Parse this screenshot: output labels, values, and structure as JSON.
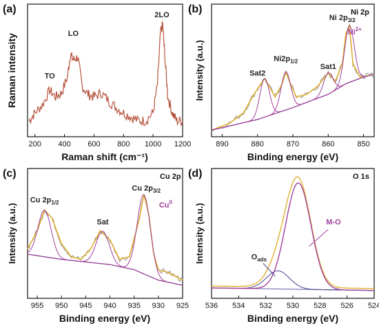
{
  "colors": {
    "raman": "#b5533c",
    "raw": "#9a9a9a",
    "fit": "#e0b030",
    "component_purple": "#a0409a",
    "component_blue": "#3f3f8f",
    "background": "#5a5aa0"
  },
  "chart_data": [
    {
      "panel": "(a)",
      "type": "line",
      "xlabel": "Raman shift (cm⁻¹)",
      "ylabel": "Raman intensity",
      "xlim": [
        150,
        1200
      ],
      "ylim": [
        0,
        1
      ],
      "xticks": [
        "200",
        "400",
        "600",
        "800",
        "1000",
        "1200"
      ],
      "yticks_shown": false,
      "annotations": [
        {
          "text": "TO",
          "x": 300,
          "y": 0.44
        },
        {
          "text": "LO",
          "x": 460,
          "y": 0.76
        },
        {
          "text": "2LO",
          "x": 1060,
          "y": 0.9
        }
      ],
      "series": [
        {
          "x": [
            160,
            200,
            250,
            300,
            340,
            380,
            420,
            440,
            460,
            490,
            520,
            560,
            600,
            650,
            700,
            750,
            800,
            850,
            900,
            950,
            1000,
            1030,
            1050,
            1065,
            1080,
            1100,
            1130,
            1160,
            1200
          ],
          "y": [
            0.12,
            0.18,
            0.24,
            0.35,
            0.3,
            0.33,
            0.45,
            0.62,
            0.58,
            0.6,
            0.38,
            0.32,
            0.3,
            0.33,
            0.27,
            0.22,
            0.18,
            0.15,
            0.12,
            0.12,
            0.18,
            0.4,
            0.78,
            0.85,
            0.6,
            0.3,
            0.18,
            0.12,
            0.12
          ]
        }
      ]
    },
    {
      "panel": "(b)",
      "type": "line",
      "tag": "Ni 2p",
      "xlabel": "Binding energy (eV)",
      "ylabel": "Intensity (a.u.)",
      "xlim": [
        893,
        847
      ],
      "ylim": [
        0,
        1
      ],
      "xticks": [
        "890",
        "880",
        "870",
        "860",
        "850"
      ],
      "yticks_shown": false,
      "annotations": [
        {
          "text": "Sat2",
          "x": 880,
          "y": 0.46,
          "style": "dark"
        },
        {
          "text": "Ni2p",
          "sub": "1/2",
          "x": 872,
          "y": 0.57,
          "style": "dark"
        },
        {
          "text": "Sat1",
          "x": 860,
          "y": 0.51,
          "style": "dark"
        },
        {
          "text": "Ni 2p",
          "sub": "3/2",
          "x": 856,
          "y": 0.88,
          "style": "dark"
        },
        {
          "text": "Ni",
          "sup": "2+",
          "x": 852.5,
          "y": 0.77,
          "style": "purple"
        }
      ],
      "series": [
        {
          "name": "raw",
          "x": [
            893,
            888,
            884,
            881,
            878,
            875,
            873,
            872,
            871,
            869,
            866,
            863,
            860,
            858,
            856,
            855,
            854,
            853,
            851,
            849,
            847
          ],
          "y": [
            0.05,
            0.1,
            0.18,
            0.32,
            0.44,
            0.3,
            0.4,
            0.49,
            0.42,
            0.3,
            0.32,
            0.38,
            0.48,
            0.42,
            0.55,
            0.78,
            0.84,
            0.55,
            0.45,
            0.46,
            0.47
          ]
        },
        {
          "name": "background",
          "x": [
            893,
            880,
            870,
            860,
            855,
            850,
            847
          ],
          "y": [
            0.05,
            0.13,
            0.22,
            0.32,
            0.4,
            0.45,
            0.47
          ]
        }
      ]
    },
    {
      "panel": "(c)",
      "type": "line",
      "tag": "Cu 2p",
      "xlabel": "Binding energy (eV)",
      "ylabel": "Intensity (a.u.)",
      "xlim": [
        957,
        925
      ],
      "ylim": [
        0,
        1
      ],
      "xticks": [
        "955",
        "950",
        "945",
        "940",
        "935",
        "930",
        "925"
      ],
      "yticks_shown": false,
      "annotations": [
        {
          "text": "Cu 2p",
          "sub": "1/2",
          "x": 953.5,
          "y": 0.74,
          "style": "dark"
        },
        {
          "text": "Sat",
          "x": 941.5,
          "y": 0.57,
          "style": "dark"
        },
        {
          "text": "Cu 2p",
          "sub": "3/2",
          "x": 932.5,
          "y": 0.83,
          "style": "dark"
        },
        {
          "text": "Cu",
          "sup": "0",
          "x": 928.5,
          "y": 0.7,
          "style": "purple"
        }
      ],
      "series": [
        {
          "name": "raw",
          "x": [
            957,
            955,
            953.5,
            952,
            950,
            948,
            946,
            944,
            942,
            940,
            938,
            936,
            934,
            933,
            932,
            931,
            930,
            928,
            926,
            925
          ],
          "y": [
            0.38,
            0.52,
            0.68,
            0.62,
            0.42,
            0.32,
            0.3,
            0.38,
            0.52,
            0.45,
            0.3,
            0.32,
            0.6,
            0.8,
            0.65,
            0.35,
            0.22,
            0.2,
            0.16,
            0.14
          ]
        },
        {
          "name": "background",
          "x": [
            957,
            950,
            945,
            940,
            935,
            930,
            925
          ],
          "y": [
            0.34,
            0.3,
            0.28,
            0.26,
            0.22,
            0.14,
            0.1
          ]
        }
      ]
    },
    {
      "panel": "(d)",
      "type": "line",
      "tag": "O 1s",
      "xlabel": "Binding energy (eV)",
      "ylabel": "Intensity (a.u.)",
      "xlim": [
        536,
        524
      ],
      "ylim": [
        0,
        1
      ],
      "xticks": [
        "536",
        "534",
        "532",
        "530",
        "528",
        "526",
        "524"
      ],
      "yticks_shown": false,
      "annotations": [
        {
          "text": "O",
          "sub": "ads",
          "x": 532.5,
          "y": 0.3,
          "style": "dark"
        },
        {
          "text": "M-O",
          "x": 527,
          "y": 0.57,
          "style": "purple"
        }
      ],
      "series": [
        {
          "name": "M-O",
          "peak_x": 529.6,
          "height": 0.82,
          "fwhm": 2.2
        },
        {
          "name": "O_ads",
          "peak_x": 531.1,
          "height": 0.14,
          "fwhm": 2.0
        },
        {
          "name": "background",
          "x": [
            536,
            524
          ],
          "y": [
            0.08,
            0.06
          ]
        }
      ]
    }
  ]
}
